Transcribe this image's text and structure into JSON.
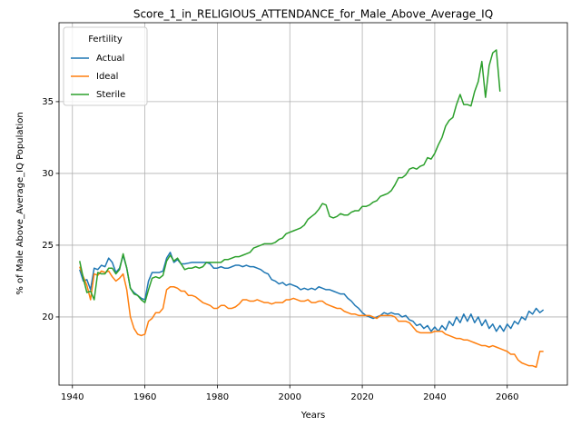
{
  "chart_data": {
    "type": "line",
    "title": "Score_1_in_RELIGIOUS_ATTENDANCE_for_Male_Above_Average_IQ",
    "xlabel": "Years",
    "ylabel": "% of Male Above_Average_IQ Population",
    "legend_title": "Fertility",
    "legend_loc": "upper left",
    "grid": true,
    "xlim": [
      1936.3,
      2076.6
    ],
    "ylim": [
      15.25,
      40.5
    ],
    "xticks": [
      1940,
      1960,
      1980,
      2000,
      2020,
      2040,
      2060
    ],
    "yticks": [
      20,
      25,
      30,
      35
    ],
    "x": [
      1942,
      1943,
      1944,
      1945,
      1946,
      1947,
      1948,
      1949,
      1950,
      1951,
      1952,
      1953,
      1954,
      1955,
      1956,
      1957,
      1958,
      1959,
      1960,
      1961,
      1962,
      1963,
      1964,
      1965,
      1966,
      1967,
      1968,
      1969,
      1970,
      1971,
      1972,
      1973,
      1974,
      1975,
      1976,
      1977,
      1978,
      1979,
      1980,
      1981,
      1982,
      1983,
      1984,
      1985,
      1986,
      1987,
      1988,
      1989,
      1990,
      1991,
      1992,
      1993,
      1994,
      1995,
      1996,
      1997,
      1998,
      1999,
      2000,
      2001,
      2002,
      2003,
      2004,
      2005,
      2006,
      2007,
      2008,
      2009,
      2010,
      2011,
      2012,
      2013,
      2014,
      2015,
      2016,
      2017,
      2018,
      2019,
      2020,
      2021,
      2022,
      2023,
      2024,
      2025,
      2026,
      2027,
      2028,
      2029,
      2030,
      2031,
      2032,
      2033,
      2034,
      2035,
      2036,
      2037,
      2038,
      2039,
      2040,
      2041,
      2042,
      2043,
      2044,
      2045,
      2046,
      2047,
      2048,
      2049,
      2050,
      2051,
      2052,
      2053,
      2054,
      2055,
      2056,
      2057,
      2058,
      2059,
      2060,
      2061,
      2062,
      2063,
      2064,
      2065,
      2066,
      2067,
      2068,
      2069,
      2070
    ],
    "series": [
      {
        "name": "Actual",
        "color": "#1f77b4",
        "values": [
          23.3,
          22.5,
          22.6,
          21.9,
          23.4,
          23.3,
          23.6,
          23.5,
          24.1,
          23.8,
          23.1,
          23.4,
          24.3,
          23.4,
          22.0,
          21.7,
          21.5,
          21.3,
          21.2,
          22.5,
          23.1,
          23.1,
          23.1,
          23.2,
          24.1,
          24.5,
          23.8,
          24.0,
          23.7,
          23.7,
          23.75,
          23.8,
          23.8,
          23.8,
          23.8,
          23.8,
          23.7,
          23.4,
          23.4,
          23.5,
          23.4,
          23.4,
          23.5,
          23.6,
          23.6,
          23.5,
          23.6,
          23.5,
          23.5,
          23.4,
          23.3,
          23.1,
          23.0,
          22.6,
          22.5,
          22.3,
          22.4,
          22.2,
          22.3,
          22.2,
          22.1,
          21.9,
          22.0,
          21.9,
          22.0,
          21.9,
          22.1,
          22.0,
          21.9,
          21.9,
          21.8,
          21.7,
          21.6,
          21.6,
          21.3,
          21.1,
          20.8,
          20.6,
          20.3,
          20.1,
          20.0,
          19.9,
          20.0,
          20.1,
          20.3,
          20.2,
          20.3,
          20.2,
          20.2,
          20.0,
          20.1,
          19.8,
          19.7,
          19.4,
          19.5,
          19.2,
          19.4,
          19.0,
          19.3,
          19.0,
          19.4,
          19.1,
          19.7,
          19.4,
          20.0,
          19.6,
          20.2,
          19.7,
          20.2,
          19.6,
          20.0,
          19.4,
          19.8,
          19.2,
          19.5,
          19.0,
          19.4,
          19.0,
          19.5,
          19.2,
          19.7,
          19.5,
          20.0,
          19.8,
          20.4,
          20.2,
          20.6,
          20.3,
          20.5
        ]
      },
      {
        "name": "Ideal",
        "color": "#ff7f0e",
        "values": [
          23.5,
          22.8,
          22.2,
          21.2,
          23.0,
          22.9,
          23.2,
          23.1,
          23.2,
          22.8,
          22.5,
          22.7,
          23.0,
          21.9,
          20.0,
          19.2,
          18.8,
          18.7,
          18.8,
          19.7,
          19.9,
          20.3,
          20.3,
          20.6,
          21.9,
          22.1,
          22.1,
          22.0,
          21.8,
          21.8,
          21.5,
          21.5,
          21.4,
          21.2,
          21.0,
          20.9,
          20.8,
          20.6,
          20.6,
          20.8,
          20.8,
          20.6,
          20.6,
          20.7,
          20.9,
          21.2,
          21.2,
          21.1,
          21.1,
          21.2,
          21.1,
          21.0,
          21.0,
          20.9,
          21.0,
          21.0,
          21.0,
          21.2,
          21.2,
          21.3,
          21.2,
          21.1,
          21.1,
          21.2,
          21.0,
          21.0,
          21.1,
          21.1,
          20.9,
          20.8,
          20.7,
          20.6,
          20.6,
          20.4,
          20.3,
          20.2,
          20.2,
          20.1,
          20.1,
          20.1,
          20.1,
          20.0,
          19.9,
          20.1,
          20.1,
          20.1,
          20.1,
          20.0,
          19.7,
          19.7,
          19.7,
          19.6,
          19.3,
          19.0,
          18.9,
          18.9,
          18.9,
          18.9,
          19.0,
          19.0,
          19.0,
          18.8,
          18.7,
          18.6,
          18.5,
          18.5,
          18.4,
          18.4,
          18.3,
          18.2,
          18.1,
          18.0,
          18.0,
          17.9,
          18.0,
          17.9,
          17.8,
          17.7,
          17.6,
          17.4,
          17.4,
          17.0,
          16.8,
          16.7,
          16.6,
          16.6,
          16.5,
          17.6,
          17.6
        ]
      },
      {
        "name": "Sterile",
        "color": "#2ca02c",
        "values": [
          23.9,
          22.7,
          21.7,
          21.8,
          21.2,
          23.1,
          23.0,
          23.0,
          23.4,
          23.4,
          23.0,
          23.3,
          24.4,
          23.4,
          22.0,
          21.6,
          21.5,
          21.2,
          21.0,
          21.9,
          22.7,
          22.8,
          22.7,
          22.9,
          23.9,
          24.3,
          23.9,
          24.1,
          23.7,
          23.3,
          23.4,
          23.4,
          23.5,
          23.4,
          23.5,
          23.8,
          23.8,
          23.8,
          23.8,
          23.8,
          24.0,
          24.0,
          24.1,
          24.2,
          24.2,
          24.3,
          24.4,
          24.5,
          24.8,
          24.9,
          25.0,
          25.1,
          25.1,
          25.1,
          25.2,
          25.4,
          25.5,
          25.8,
          25.9,
          26.0,
          26.1,
          26.2,
          26.4,
          26.8,
          27.0,
          27.2,
          27.5,
          27.9,
          27.8,
          27.0,
          26.9,
          27.0,
          27.2,
          27.1,
          27.1,
          27.3,
          27.4,
          27.4,
          27.7,
          27.7,
          27.8,
          28.0,
          28.1,
          28.4,
          28.5,
          28.6,
          28.8,
          29.2,
          29.7,
          29.7,
          29.9,
          30.3,
          30.4,
          30.3,
          30.5,
          30.6,
          31.1,
          31.0,
          31.4,
          32.0,
          32.5,
          33.3,
          33.7,
          33.9,
          34.8,
          35.5,
          34.8,
          34.8,
          34.7,
          35.7,
          36.4,
          37.8,
          35.3,
          37.5,
          38.4,
          38.6,
          35.7,
          null,
          null,
          null,
          null,
          null,
          null,
          null,
          null,
          null,
          null,
          null,
          null
        ]
      }
    ]
  }
}
